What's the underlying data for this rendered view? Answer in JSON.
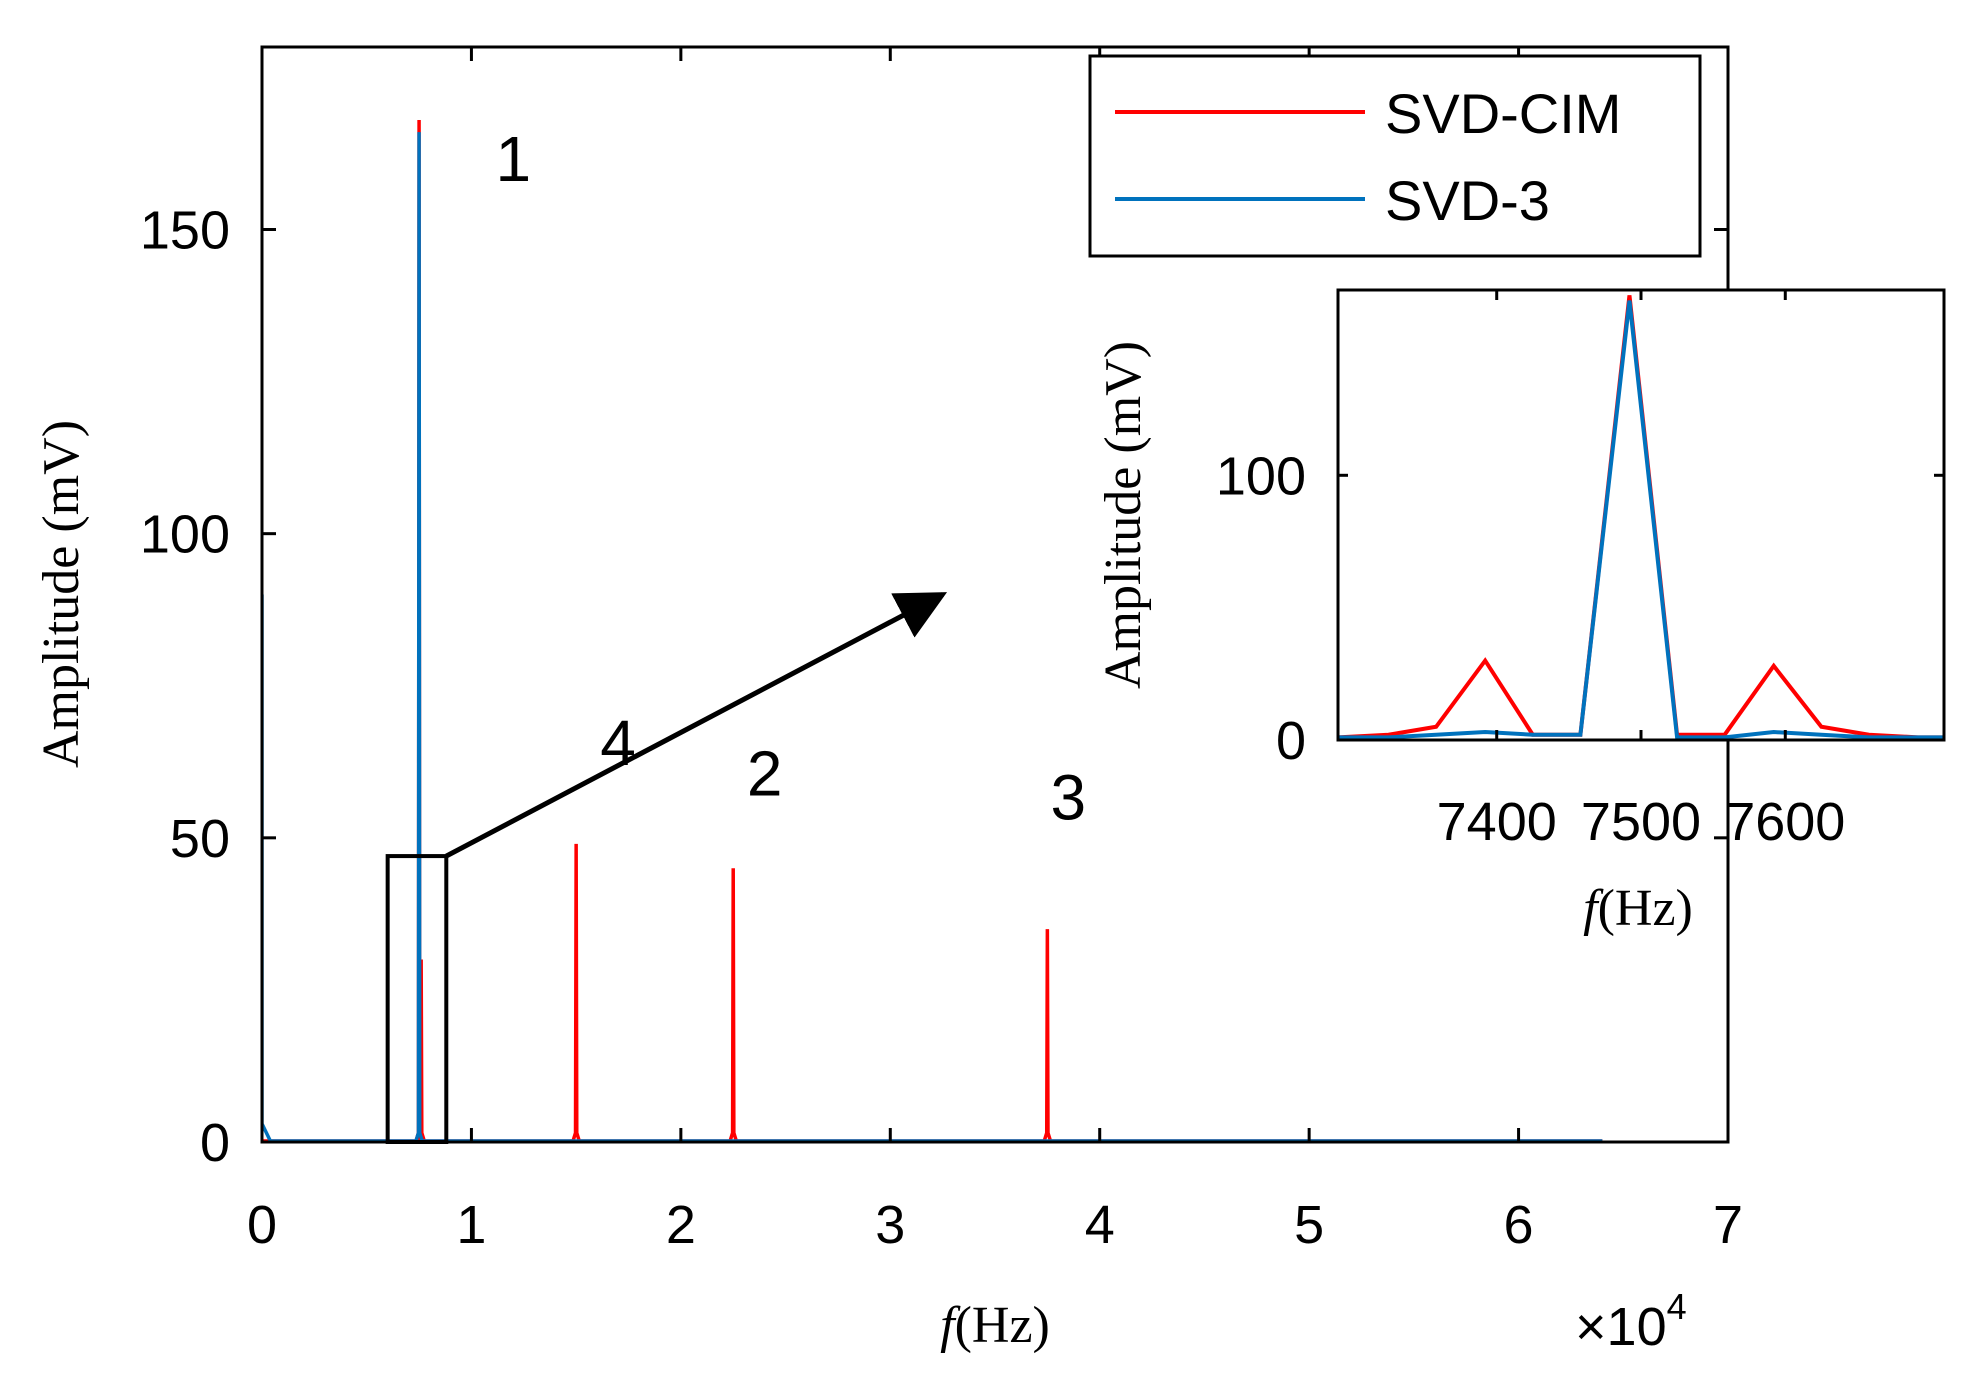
{
  "chart_data": [
    {
      "id": "main",
      "type": "line",
      "xlabel_italic": "f",
      "xlabel_rest": "(Hz)",
      "ylabel": "Amplitude (mV)",
      "xlim": [
        0,
        70000
      ],
      "ylim": [
        0,
        180
      ],
      "xticks": [
        0,
        10000,
        20000,
        30000,
        40000,
        50000,
        60000,
        70000
      ],
      "xtick_labels": [
        "0",
        "1",
        "2",
        "3",
        "4",
        "5",
        "6",
        "7"
      ],
      "x_exponent": {
        "times": "×",
        "base": "10",
        "power": "4"
      },
      "yticks": [
        0,
        50,
        100,
        150
      ],
      "ytick_labels": [
        "0",
        "50",
        "100",
        "150"
      ],
      "legend_position": "top-right",
      "series": [
        {
          "name": "SVD-CIM",
          "color": "#ff0000",
          "peaks": [
            [
              7500,
              168
            ],
            [
              15000,
              49
            ],
            [
              22500,
              45
            ],
            [
              37500,
              35
            ],
            [
              7600,
              30
            ]
          ],
          "x_end": 64000
        },
        {
          "name": "SVD-3",
          "color": "#0072bd",
          "peaks": [
            [
              7500,
              166
            ]
          ],
          "initial_spike": 90,
          "x_end": 64000
        }
      ],
      "annotations": [
        {
          "text": "1",
          "x": 12000,
          "y": 158
        },
        {
          "text": "4",
          "x": 17000,
          "y": 62
        },
        {
          "text": "2",
          "x": 24000,
          "y": 57
        },
        {
          "text": "3",
          "x": 38500,
          "y": 53
        }
      ],
      "zoom_box": {
        "x0": 6000,
        "x1": 8800,
        "y0": 0,
        "y1": 47
      },
      "arrow": {
        "from": [
          8800,
          47
        ],
        "to": [
          32500,
          90
        ]
      }
    },
    {
      "id": "inset",
      "type": "line",
      "xlabel_italic": "f",
      "xlabel_rest": "(Hz)",
      "ylabel": "Amplitude (mV)",
      "xlim": [
        7290,
        7710
      ],
      "ylim": [
        0,
        170
      ],
      "xticks": [
        7400,
        7500,
        7600
      ],
      "xtick_labels": [
        "7400",
        "7500",
        "7600"
      ],
      "yticks": [
        0,
        100
      ],
      "ytick_labels": [
        "0",
        "100"
      ],
      "series": [
        {
          "name": "SVD-CIM",
          "color": "#ff0000",
          "x": [
            7290,
            7325,
            7358,
            7392,
            7425,
            7458,
            7492,
            7525,
            7558,
            7592,
            7625,
            7658,
            7692,
            7710
          ],
          "y": [
            1,
            2,
            5,
            30,
            2,
            2,
            168,
            2,
            2,
            28,
            5,
            2,
            1,
            1
          ]
        },
        {
          "name": "SVD-3",
          "color": "#0072bd",
          "x": [
            7290,
            7325,
            7358,
            7392,
            7425,
            7458,
            7492,
            7525,
            7558,
            7592,
            7625,
            7658,
            7692,
            7710
          ],
          "y": [
            1,
            1,
            2,
            3,
            2,
            2,
            166,
            1,
            1,
            3,
            2,
            1,
            1,
            1
          ]
        }
      ]
    }
  ]
}
